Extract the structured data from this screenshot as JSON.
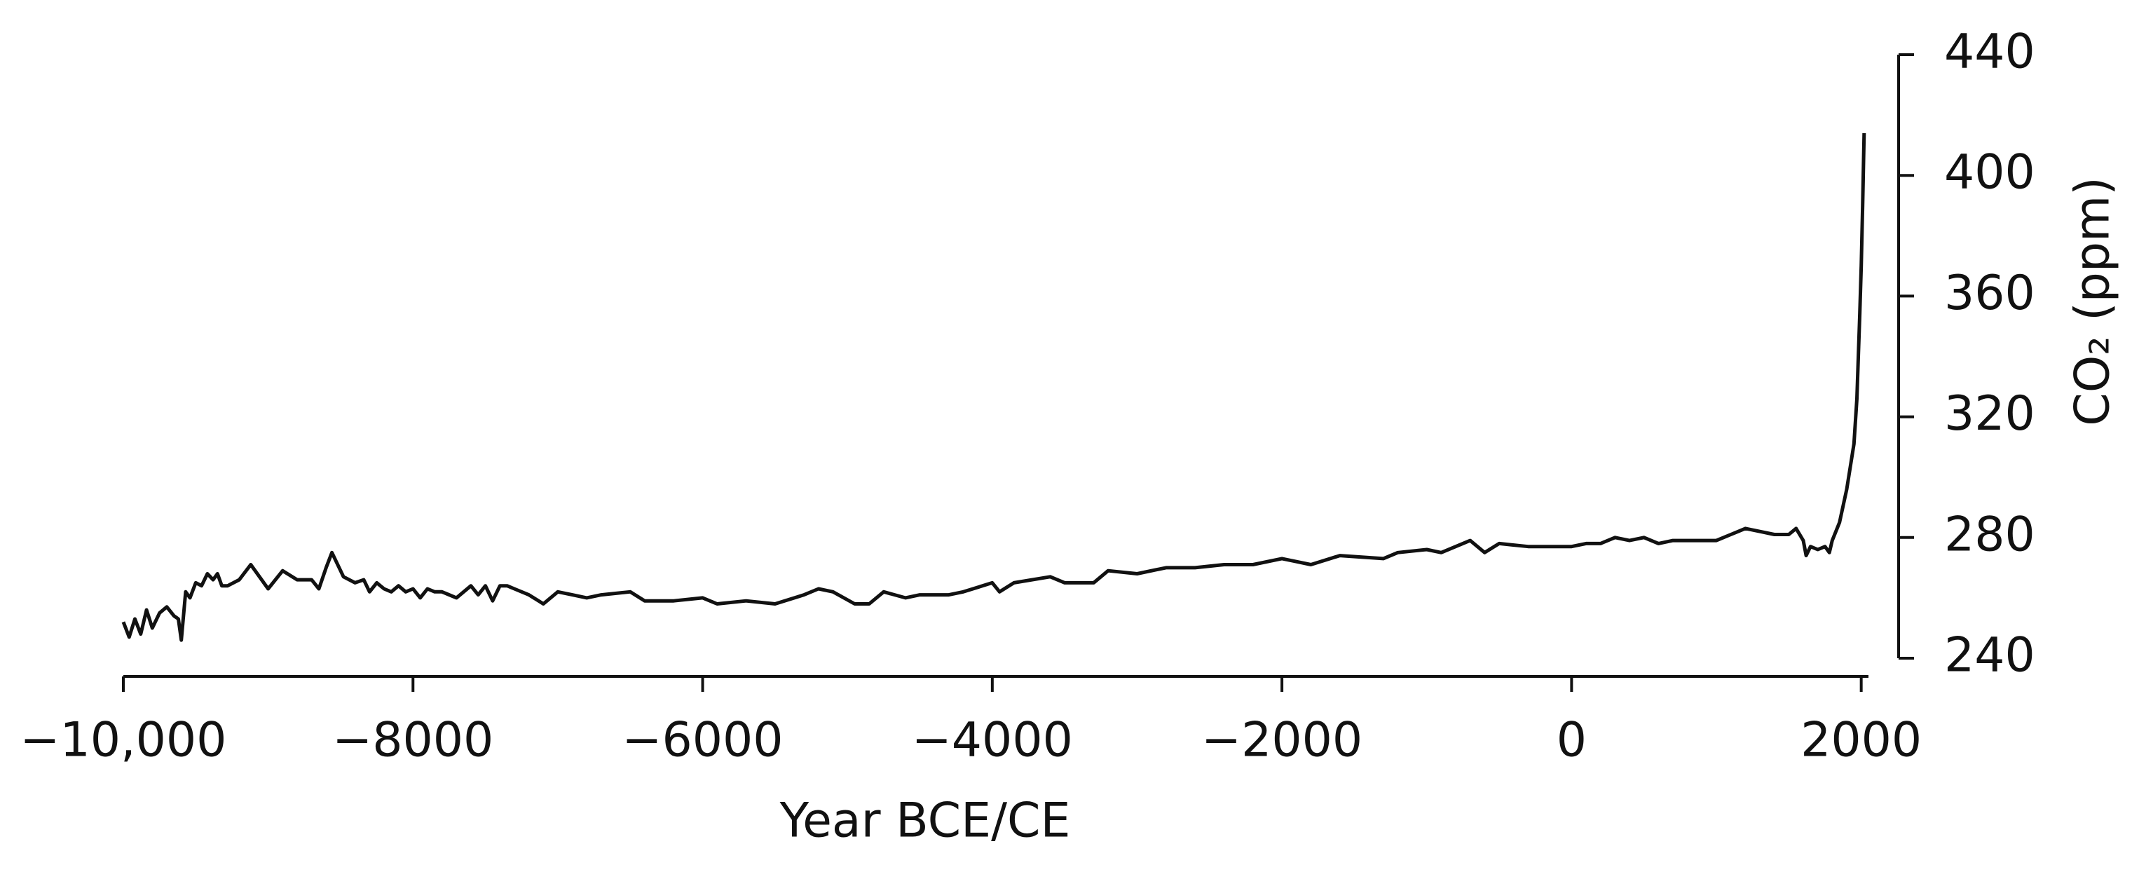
{
  "chart_data": {
    "type": "line",
    "xlabel": "Year BCE/CE",
    "ylabel": "CO₂ (ppm)",
    "color": "#111111",
    "xlim": [
      -10000,
      2050
    ],
    "xticks": [
      {
        "value": -10000,
        "label": "−10,000"
      },
      {
        "value": -8000,
        "label": "−8000"
      },
      {
        "value": -6000,
        "label": "−6000"
      },
      {
        "value": -4000,
        "label": "−4000"
      },
      {
        "value": -2000,
        "label": "−2000"
      },
      0,
      2000
    ],
    "ylim": [
      240,
      440
    ],
    "yticks": [
      240,
      280,
      320,
      360,
      400,
      440
    ],
    "x": [
      -10000,
      -9960,
      -9920,
      -9880,
      -9840,
      -9800,
      -9750,
      -9700,
      -9650,
      -9620,
      -9600,
      -9570,
      -9540,
      -9500,
      -9460,
      -9420,
      -9380,
      -9350,
      -9320,
      -9280,
      -9200,
      -9120,
      -9000,
      -8900,
      -8800,
      -8700,
      -8650,
      -8600,
      -8560,
      -8480,
      -8400,
      -8340,
      -8300,
      -8250,
      -8200,
      -8150,
      -8100,
      -8050,
      -8000,
      -7950,
      -7900,
      -7850,
      -7800,
      -7700,
      -7600,
      -7550,
      -7500,
      -7450,
      -7400,
      -7350,
      -7300,
      -7200,
      -7100,
      -7000,
      -6900,
      -6800,
      -6700,
      -6500,
      -6400,
      -6200,
      -6000,
      -5900,
      -5700,
      -5500,
      -5300,
      -5200,
      -5100,
      -4950,
      -4850,
      -4750,
      -4600,
      -4500,
      -4300,
      -4200,
      -4000,
      -3950,
      -3850,
      -3600,
      -3500,
      -3300,
      -3200,
      -3000,
      -2800,
      -2600,
      -2400,
      -2200,
      -2000,
      -1900,
      -1800,
      -1600,
      -1300,
      -1200,
      -1000,
      -900,
      -700,
      -600,
      -500,
      -300,
      -100,
      0,
      100,
      200,
      300,
      400,
      500,
      600,
      700,
      800,
      900,
      1000,
      1100,
      1200,
      1300,
      1400,
      1500,
      1550,
      1600,
      1620,
      1650,
      1700,
      1750,
      1780,
      1800,
      1850,
      1900,
      1950,
      1970,
      1990,
      2000,
      2010,
      2020
    ],
    "values": [
      252,
      247,
      253,
      248,
      256,
      250,
      255,
      257,
      254,
      253,
      246,
      262,
      260,
      265,
      264,
      268,
      266,
      268,
      264,
      264,
      266,
      271,
      263,
      269,
      266,
      266,
      263,
      270,
      275,
      267,
      265,
      266,
      262,
      265,
      263,
      262,
      264,
      262,
      263,
      260,
      263,
      262,
      262,
      260,
      264,
      261,
      264,
      259,
      264,
      264,
      263,
      261,
      258,
      262,
      261,
      260,
      261,
      262,
      259,
      259,
      260,
      258,
      259,
      258,
      261,
      263,
      262,
      258,
      258,
      262,
      260,
      261,
      261,
      262,
      265,
      262,
      265,
      267,
      265,
      265,
      269,
      268,
      270,
      270,
      271,
      271,
      273,
      272,
      271,
      274,
      273,
      275,
      276,
      275,
      279,
      275,
      278,
      277,
      277,
      277,
      278,
      278,
      280,
      279,
      280,
      278,
      279,
      279,
      279,
      279,
      281,
      283,
      282,
      281,
      281,
      283,
      279,
      274,
      277,
      276,
      277,
      275,
      279,
      285,
      296,
      311,
      326,
      354,
      370,
      390,
      414
    ]
  }
}
